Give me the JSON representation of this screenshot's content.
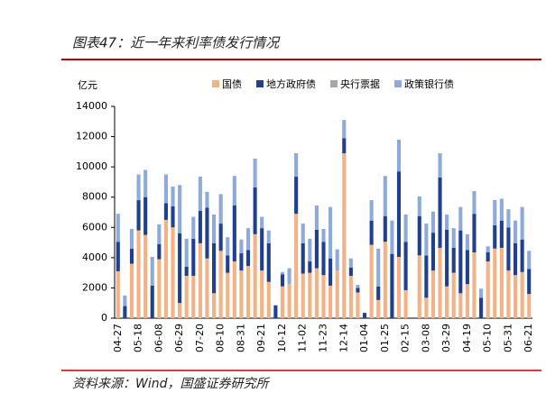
{
  "chart_data": {
    "type": "stacked_bar",
    "title": "图表47：近一年来利率债发行情况",
    "y_axis_label": "亿元",
    "source": "资料来源：Wind，国盛证券研究所",
    "categories": [
      "04-27",
      null,
      null,
      "05-18",
      null,
      null,
      "06-08",
      null,
      null,
      "06-29",
      null,
      null,
      "07-20",
      null,
      null,
      "08-10",
      null,
      null,
      "08-31",
      null,
      null,
      "09-21",
      null,
      null,
      "10-12",
      null,
      null,
      "11-02",
      null,
      null,
      "11-23",
      null,
      null,
      "12-14",
      null,
      null,
      "01-04",
      null,
      null,
      "01-25",
      null,
      null,
      "02-15",
      null,
      null,
      "03-08",
      null,
      null,
      "03-29",
      null,
      null,
      "04-19",
      null,
      null,
      "05-10",
      null,
      null,
      "05-31",
      null,
      null,
      "06-21"
    ],
    "series": [
      {
        "name": "国债",
        "color": "#f4b183",
        "values": [
          3100,
          0,
          3600,
          5800,
          5500,
          0,
          3900,
          6500,
          6000,
          1000,
          2800,
          2800,
          4950,
          3950,
          1650,
          4450,
          3000,
          3750,
          3150,
          3450,
          5550,
          3150,
          2400,
          0,
          2100,
          2250,
          6900,
          2950,
          3000,
          3300,
          2850,
          2150,
          3150,
          10900,
          2800,
          1700,
          0,
          4850,
          1200,
          5050,
          0,
          4050,
          1850,
          0,
          4150,
          1350,
          3150,
          4650,
          2100,
          3000,
          1650,
          2250,
          4350,
          0,
          3750,
          4600,
          4650,
          3150,
          2850,
          3050,
          1600
        ]
      },
      {
        "name": "地方政府债",
        "color": "#1f3f8f",
        "values": [
          1950,
          800,
          1000,
          2000,
          2500,
          2150,
          1000,
          1100,
          1400,
          4600,
          600,
          2450,
          2150,
          3350,
          3300,
          1800,
          1150,
          3700,
          1150,
          1050,
          3100,
          2800,
          2550,
          850,
          800,
          0,
          2450,
          2000,
          750,
          2550,
          2200,
          1800,
          0,
          1000,
          550,
          300,
          350,
          1600,
          900,
          1700,
          4250,
          5650,
          3200,
          0,
          2600,
          2800,
          2500,
          4650,
          3750,
          1650,
          4150,
          2250,
          2550,
          1350,
          600,
          1550,
          1800,
          2850,
          2100,
          2150,
          1650
        ]
      },
      {
        "name": "央行票据",
        "color": "#a6a6a6",
        "values": [
          0,
          0,
          0,
          0,
          0,
          0,
          0,
          0,
          0,
          0,
          0,
          0,
          0,
          0,
          0,
          0,
          0,
          0,
          0,
          0,
          0,
          0,
          0,
          0,
          0,
          0,
          0,
          0,
          0,
          0,
          0,
          0,
          0,
          0,
          0,
          0,
          0,
          0,
          0,
          0,
          0,
          0,
          0,
          0,
          0,
          0,
          0,
          0,
          0,
          0,
          0,
          0,
          0,
          0,
          0,
          0,
          0,
          0,
          0,
          0,
          0
        ]
      },
      {
        "name": "政策银行债",
        "color": "#8eaadb",
        "values": [
          1850,
          700,
          1300,
          1700,
          1800,
          1900,
          1300,
          1900,
          1300,
          3200,
          1850,
          1450,
          2250,
          1050,
          1900,
          1950,
          1200,
          1950,
          900,
          1450,
          1900,
          750,
          850,
          0,
          150,
          1050,
          1550,
          1300,
          1500,
          1600,
          850,
          3400,
          1400,
          1200,
          600,
          200,
          0,
          1350,
          2500,
          2650,
          2200,
          2100,
          1800,
          0,
          1300,
          2100,
          1400,
          1600,
          1000,
          1300,
          1550,
          1050,
          1500,
          600,
          400,
          1650,
          1450,
          1200,
          1500,
          2150,
          1200
        ]
      }
    ],
    "ylim": [
      0,
      14000
    ],
    "yticks": [
      0,
      2000,
      4000,
      6000,
      8000,
      10000,
      12000,
      14000
    ],
    "legend": "top"
  }
}
